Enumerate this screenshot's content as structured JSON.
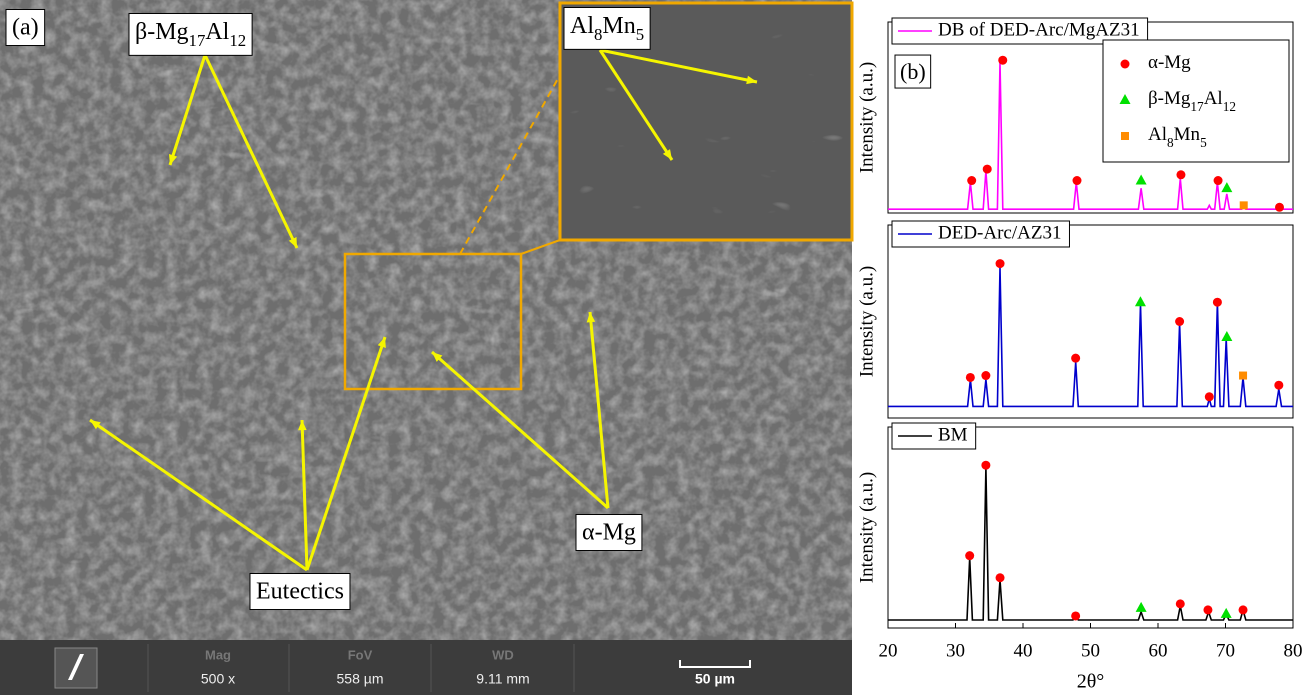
{
  "micrograph": {
    "panel_label": "(a)",
    "annotations": [
      "β-Mg17Al12",
      "α-Mg",
      "Eutectics"
    ],
    "inset_label": "Al8Mn5",
    "info_bar": [
      {
        "label": "Mag",
        "value": "500 x"
      },
      {
        "label": "FoV",
        "value": "558 µm"
      },
      {
        "label": "WD",
        "value": "9.11 mm"
      }
    ],
    "scale_bar": "50 µm"
  },
  "chart_data": [
    {
      "type": "line",
      "panel_label": "(b)",
      "ylabel": "Intensity (a.u.)",
      "xlim": [
        20,
        80
      ],
      "ylim": [
        0,
        100
      ],
      "legend": "upper right",
      "series": [
        {
          "name": "DB of DED-Arc/MgAZ31",
          "color": "#ff00ff",
          "x": [
            20,
            31.8,
            32.2,
            32.6,
            34.1,
            34.5,
            34.9,
            36.2,
            36.6,
            37.0,
            47.5,
            47.9,
            48.3,
            57.1,
            57.5,
            57.9,
            62.9,
            63.3,
            63.7,
            67.3,
            67.6,
            67.9,
            68.4,
            68.8,
            69.2,
            69.8,
            70.2,
            70.6,
            72.4,
            72.7,
            73.0,
            77.6,
            77.9,
            78.2,
            80
          ],
          "values": [
            2,
            2,
            16,
            2,
            2,
            22,
            2,
            2,
            79,
            2,
            2,
            16,
            2,
            2,
            13,
            2,
            2,
            18,
            2,
            2,
            4,
            2,
            2,
            16,
            2,
            2,
            10,
            2,
            2,
            3,
            2,
            2,
            3,
            2,
            2
          ]
        },
        {
          "name": "α-Mg",
          "marker": "circle",
          "color": "#ff0000",
          "x": [
            32.4,
            34.7,
            37.0,
            48.0,
            63.4,
            68.9,
            78.0
          ],
          "values": [
            17,
            23,
            80,
            17,
            20,
            17,
            3
          ]
        },
        {
          "name": "β-Mg17Al12",
          "marker": "triangle",
          "color": "#00e000",
          "x": [
            57.5,
            70.2
          ],
          "values": [
            17,
            13
          ]
        },
        {
          "name": "Al8Mn5",
          "marker": "square",
          "color": "#ff8c00",
          "x": [
            72.7
          ],
          "values": [
            4
          ]
        }
      ]
    },
    {
      "type": "line",
      "ylabel": "Intensity (a.u.)",
      "xlim": [
        20,
        80
      ],
      "ylim": [
        0,
        100
      ],
      "series": [
        {
          "name": "DED-Arc/AZ31",
          "color": "#0000cc",
          "x": [
            20,
            31.8,
            32.2,
            32.6,
            34.1,
            34.5,
            34.9,
            36.2,
            36.6,
            37.0,
            47.4,
            47.8,
            48.2,
            57.0,
            57.4,
            57.8,
            62.8,
            63.2,
            63.6,
            67.3,
            67.6,
            67.9,
            68.4,
            68.8,
            69.2,
            69.7,
            70.1,
            70.5,
            72.2,
            72.6,
            73.0,
            77.5,
            77.9,
            78.3,
            80
          ],
          "values": [
            6,
            6,
            20,
            6,
            6,
            20,
            6,
            6,
            78,
            6,
            6,
            29,
            6,
            6,
            59,
            6,
            6,
            49,
            6,
            6,
            10,
            6,
            6,
            60,
            6,
            6,
            41,
            6,
            6,
            21,
            6,
            6,
            15,
            6,
            6
          ]
        },
        {
          "marker": "circle",
          "color": "#ff0000",
          "x": [
            32.2,
            34.5,
            36.6,
            47.8,
            63.2,
            67.6,
            68.8,
            77.9
          ],
          "values": [
            21,
            22,
            80,
            31,
            50,
            11,
            60,
            17
          ]
        },
        {
          "marker": "triangle",
          "color": "#00e000",
          "x": [
            57.4,
            70.2
          ],
          "values": [
            60,
            42
          ]
        },
        {
          "marker": "square",
          "color": "#ff8c00",
          "x": [
            72.6
          ],
          "values": [
            22
          ]
        }
      ]
    },
    {
      "type": "line",
      "ylabel": "Intensity (a.u.)",
      "xlabel": "2θ°",
      "xlim": [
        20,
        80
      ],
      "ylim": [
        0,
        100
      ],
      "xticks": [
        20,
        30,
        40,
        50,
        60,
        70,
        80
      ],
      "series": [
        {
          "name": "BM",
          "color": "#000000",
          "x": [
            20,
            31.7,
            32.1,
            32.5,
            34.1,
            34.5,
            34.9,
            36.2,
            36.6,
            37.0,
            47.4,
            47.8,
            48.2,
            57.1,
            57.5,
            57.9,
            62.9,
            63.3,
            63.7,
            67.1,
            67.5,
            67.9,
            69.7,
            70.1,
            70.5,
            72.2,
            72.6,
            73.0,
            80
          ],
          "values": [
            4,
            4,
            35,
            4,
            4,
            80,
            4,
            4,
            24,
            4,
            4,
            6,
            4,
            4,
            8,
            4,
            4,
            11,
            4,
            4,
            8,
            4,
            4,
            7,
            4,
            4,
            9,
            4,
            4
          ]
        },
        {
          "marker": "circle",
          "color": "#ff0000",
          "x": [
            32.1,
            34.5,
            36.6,
            47.8,
            63.3,
            67.4,
            72.6
          ],
          "values": [
            36,
            81,
            25,
            6,
            12,
            9,
            9
          ]
        },
        {
          "marker": "triangle",
          "color": "#00e000",
          "x": [
            57.5,
            70.1
          ],
          "values": [
            10,
            7
          ]
        }
      ]
    }
  ]
}
